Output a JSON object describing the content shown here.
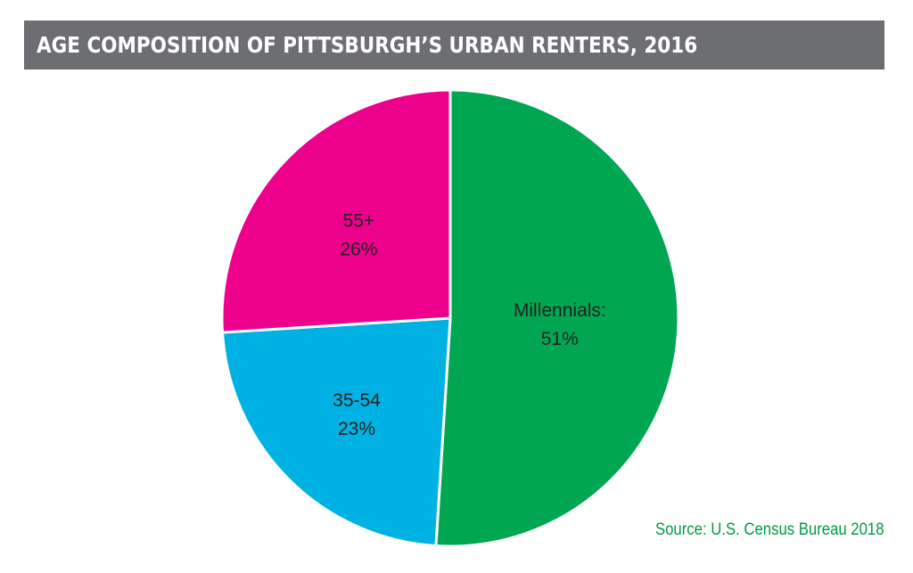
{
  "chart_data": {
    "type": "pie",
    "title": "AGE COMPOSITION OF PITTSBURGH’S URBAN RENTERS, 2016",
    "slices": [
      {
        "label": "Millennials:",
        "value": 51,
        "value_text": "51%",
        "color": "#00a651"
      },
      {
        "label": "35-54",
        "value": 23,
        "value_text": "23%",
        "color": "#00b2e3"
      },
      {
        "label": "55+",
        "value": 26,
        "value_text": "26%",
        "color": "#ec008c"
      }
    ],
    "source": "Source: U.S. Census Bureau 2018"
  }
}
